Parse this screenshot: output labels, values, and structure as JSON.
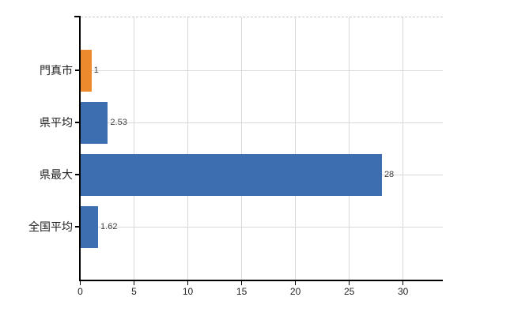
{
  "chart_data": {
    "type": "bar",
    "orientation": "horizontal",
    "title": "",
    "xlabel": "",
    "ylabel": "",
    "categories": [
      "門真市",
      "県平均",
      "県最大",
      "全国平均"
    ],
    "values": [
      1,
      2.53,
      28,
      1.62
    ],
    "value_labels": [
      "1",
      "2.53",
      "28",
      "1.62"
    ],
    "bar_colors": [
      "#ED8A2E",
      "#3D6FB0",
      "#3D6FB0",
      "#3D6FB0"
    ],
    "x_ticks": [
      0,
      5,
      10,
      15,
      20,
      25,
      30
    ],
    "x_tick_labels": [
      "0",
      "5",
      "10",
      "15",
      "20",
      "25",
      "30"
    ],
    "xlim": [
      0,
      33.7
    ],
    "grid": true,
    "legend": "none",
    "colors": {
      "background": "#ffffff",
      "gridline": "#d9d9d9",
      "plot_top_border": "#c9c9c9",
      "axis": "#000000",
      "tick_label": "#222222",
      "category_label": "#222222",
      "value_label": "#404040",
      "bar_orange": "#ED8A2E",
      "bar_blue": "#3D6FB0"
    }
  }
}
